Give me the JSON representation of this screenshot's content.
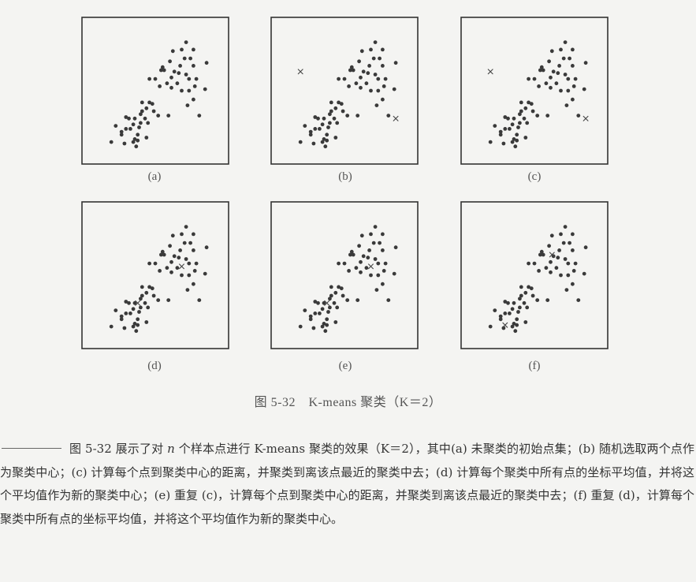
{
  "panels": [
    {
      "label": "(a)",
      "centers": []
    },
    {
      "label": "(b)",
      "centers": [
        [
          0.2,
          0.37
        ],
        [
          0.85,
          0.69
        ]
      ]
    },
    {
      "label": "(c)",
      "centers": [
        [
          0.2,
          0.37
        ],
        [
          0.85,
          0.69
        ]
      ]
    },
    {
      "label": "(d)",
      "centers": [
        [
          0.68,
          0.44
        ],
        [
          0.38,
          0.69
        ]
      ]
    },
    {
      "label": "(e)",
      "centers": [
        [
          0.68,
          0.44
        ],
        [
          0.38,
          0.69
        ]
      ]
    },
    {
      "label": "(f)",
      "centers": [
        [
          0.62,
          0.36
        ],
        [
          0.3,
          0.84
        ]
      ]
    }
  ],
  "sample_points": [
    [
      0.71,
      0.17
    ],
    [
      0.76,
      0.22
    ],
    [
      0.85,
      0.31
    ],
    [
      0.78,
      0.42
    ],
    [
      0.84,
      0.49
    ],
    [
      0.73,
      0.42
    ],
    [
      0.77,
      0.47
    ],
    [
      0.68,
      0.22
    ],
    [
      0.62,
      0.23
    ],
    [
      0.6,
      0.3
    ],
    [
      0.56,
      0.36
    ],
    [
      0.54,
      0.36
    ],
    [
      0.5,
      0.42
    ],
    [
      0.46,
      0.42
    ],
    [
      0.55,
      0.34
    ],
    [
      0.63,
      0.37
    ],
    [
      0.66,
      0.38
    ],
    [
      0.61,
      0.41
    ],
    [
      0.67,
      0.33
    ],
    [
      0.7,
      0.28
    ],
    [
      0.74,
      0.28
    ],
    [
      0.76,
      0.33
    ],
    [
      0.71,
      0.39
    ],
    [
      0.53,
      0.47
    ],
    [
      0.58,
      0.45
    ],
    [
      0.61,
      0.48
    ],
    [
      0.65,
      0.45
    ],
    [
      0.68,
      0.5
    ],
    [
      0.73,
      0.5
    ],
    [
      0.76,
      0.56
    ],
    [
      0.72,
      0.6
    ],
    [
      0.8,
      0.67
    ],
    [
      0.2,
      0.85
    ],
    [
      0.23,
      0.74
    ],
    [
      0.27,
      0.8
    ],
    [
      0.32,
      0.69
    ],
    [
      0.3,
      0.76
    ],
    [
      0.35,
      0.73
    ],
    [
      0.36,
      0.69
    ],
    [
      0.4,
      0.66
    ],
    [
      0.44,
      0.62
    ],
    [
      0.49,
      0.64
    ],
    [
      0.52,
      0.67
    ],
    [
      0.59,
      0.67
    ],
    [
      0.48,
      0.59
    ],
    [
      0.41,
      0.64
    ],
    [
      0.43,
      0.69
    ],
    [
      0.38,
      0.8
    ],
    [
      0.35,
      0.85
    ],
    [
      0.37,
      0.88
    ],
    [
      0.36,
      0.83
    ],
    [
      0.38,
      0.84
    ],
    [
      0.29,
      0.86
    ],
    [
      0.27,
      0.78
    ],
    [
      0.4,
      0.72
    ],
    [
      0.45,
      0.72
    ],
    [
      0.33,
      0.76
    ],
    [
      0.44,
      0.82
    ],
    [
      0.39,
      0.75
    ],
    [
      0.3,
      0.68
    ],
    [
      0.41,
      0.58
    ],
    [
      0.46,
      0.58
    ]
  ],
  "caption": "图 5-32　K-means 聚类（K＝2）",
  "note": {
    "text_before_var": "图 5-32 展示了对 ",
    "var": "n",
    "text_after_var": " 个样本点进行 K-means 聚类的效果（K＝2），其中(a) 未聚类的初始点集；(b) 随机选取两个点作为聚类中心；(c) 计算每个点到聚类中心的距离，并聚类到离该点最近的聚类中去；(d) 计算每个聚类中所有点的坐标平均值，并将这个平均值作为新的聚类中心；(e) 重复 (c)，计算每个点到聚类中心的距离，并聚类到离该点最近的聚类中去；(f) 重复 (d)，计算每个聚类中所有点的坐标平均值，并将这个平均值作为新的聚类中心。"
  }
}
